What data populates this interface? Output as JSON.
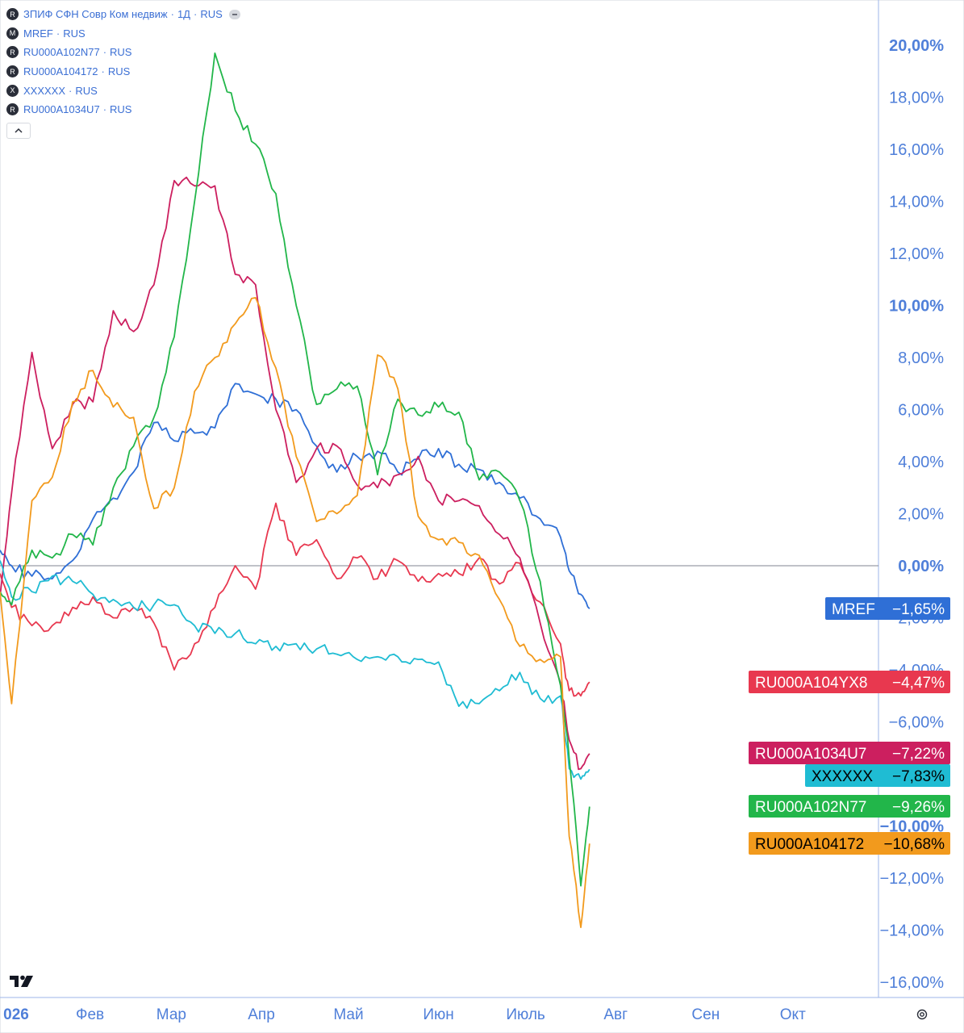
{
  "legend": {
    "main": {
      "badge": "R",
      "name": "ЗПИФ СФН Совр Ком недвиж",
      "interval": "1Д",
      "exchange": "RUS"
    },
    "items": [
      {
        "badge": "M",
        "name": "MREF",
        "exchange": "RUS"
      },
      {
        "badge": "R",
        "name": "RU000A102N77",
        "exchange": "RUS"
      },
      {
        "badge": "R",
        "name": "RU000A104172",
        "exchange": "RUS"
      },
      {
        "badge": "X",
        "name": "XXXXXX",
        "exchange": "RUS"
      },
      {
        "badge": "R",
        "name": "RU000A1034U7",
        "exchange": "RUS"
      }
    ],
    "separator": "·"
  },
  "chart_data": {
    "type": "line",
    "y_unit": "%",
    "ylim": [
      -16.5,
      21.5
    ],
    "y_ticks": [
      "20,00%",
      "18,00%",
      "16,00%",
      "14,00%",
      "12,00%",
      "10,00%",
      "8,00%",
      "6,00%",
      "4,00%",
      "2,00%",
      "0,00%",
      "−2,00%",
      "−4,00%",
      "−6,00%",
      "−10,00%",
      "−12,00%",
      "−14,00%",
      "−16,00%"
    ],
    "x_ticks": [
      "026",
      "Фев",
      "Мар",
      "Апр",
      "Май",
      "Июн",
      "Июль",
      "Авг",
      "Сен",
      "Окт"
    ],
    "zero_line": true,
    "series": [
      {
        "name": "MREF",
        "label": "MREF",
        "value_label": "−1,65%",
        "color": "#2f6fd6",
        "label_bg": "#2f6fd6",
        "label_fg": "#ffffff",
        "x": [
          "2026-01-01",
          "2026-01-05",
          "2026-01-12",
          "2026-01-19",
          "2026-01-26",
          "2026-02-02",
          "2026-02-09",
          "2026-02-16",
          "2026-02-23",
          "2026-03-02",
          "2026-03-09",
          "2026-03-16",
          "2026-03-23",
          "2026-03-30",
          "2026-04-06",
          "2026-04-13",
          "2026-04-20",
          "2026-04-27",
          "2026-05-04",
          "2026-05-11",
          "2026-05-18",
          "2026-05-25",
          "2026-06-01",
          "2026-06-08",
          "2026-06-15",
          "2026-06-22",
          "2026-06-29",
          "2026-07-06",
          "2026-07-13",
          "2026-07-16",
          "2026-07-20",
          "2026-07-23"
        ],
        "y": [
          0.6,
          0.0,
          -0.4,
          -0.5,
          0.2,
          1.8,
          2.6,
          3.6,
          5.5,
          4.8,
          5.1,
          5.3,
          7.0,
          6.6,
          6.4,
          6.0,
          4.6,
          3.6,
          4.2,
          4.4,
          3.6,
          4.1,
          4.5,
          3.9,
          3.7,
          3.2,
          2.6,
          1.8,
          1.1,
          -0.2,
          -1.1,
          -1.65
        ]
      },
      {
        "name": "RU000A104YX8",
        "label": "RU000A104YX8",
        "value_label": "−4,47%",
        "color": "#e8384f",
        "label_bg": "#e8384f",
        "label_fg": "#ffffff",
        "x": [
          "2026-01-01",
          "2026-01-05",
          "2026-01-12",
          "2026-01-19",
          "2026-01-26",
          "2026-02-02",
          "2026-02-09",
          "2026-02-16",
          "2026-02-23",
          "2026-03-02",
          "2026-03-09",
          "2026-03-16",
          "2026-03-23",
          "2026-03-30",
          "2026-04-06",
          "2026-04-13",
          "2026-04-20",
          "2026-04-27",
          "2026-05-04",
          "2026-05-11",
          "2026-05-18",
          "2026-05-25",
          "2026-06-01",
          "2026-06-08",
          "2026-06-15",
          "2026-06-22",
          "2026-06-29",
          "2026-07-06",
          "2026-07-13",
          "2026-07-16",
          "2026-07-20",
          "2026-07-23"
        ],
        "y": [
          -0.3,
          -1.6,
          -2.3,
          -2.3,
          -1.6,
          -1.2,
          -2.0,
          -1.6,
          -2.2,
          -4.0,
          -3.0,
          -1.6,
          0.0,
          -0.9,
          2.4,
          0.4,
          1.0,
          -0.5,
          0.3,
          -0.5,
          0.2,
          -0.6,
          -0.3,
          -0.3,
          0.3,
          -0.7,
          0.1,
          -1.4,
          -3.0,
          -4.8,
          -5.0,
          -4.47
        ]
      },
      {
        "name": "RU000A1034U7",
        "label": "RU000A1034U7",
        "value_label": "−7,22%",
        "color": "#cc1f5f",
        "label_bg": "#cc1f5f",
        "label_fg": "#ffffff",
        "x": [
          "2026-01-01",
          "2026-01-05",
          "2026-01-12",
          "2026-01-19",
          "2026-01-26",
          "2026-02-02",
          "2026-02-09",
          "2026-02-16",
          "2026-02-23",
          "2026-03-02",
          "2026-03-09",
          "2026-03-16",
          "2026-03-23",
          "2026-03-30",
          "2026-04-06",
          "2026-04-13",
          "2026-04-20",
          "2026-04-27",
          "2026-05-04",
          "2026-05-11",
          "2026-05-18",
          "2026-05-25",
          "2026-06-01",
          "2026-06-08",
          "2026-06-15",
          "2026-06-22",
          "2026-06-29",
          "2026-07-06",
          "2026-07-13",
          "2026-07-16",
          "2026-07-20",
          "2026-07-23"
        ],
        "y": [
          -1.2,
          2.8,
          8.2,
          4.5,
          6.2,
          6.3,
          9.8,
          9.0,
          10.8,
          14.8,
          14.6,
          14.6,
          11.2,
          10.8,
          6.0,
          3.2,
          4.5,
          4.6,
          3.1,
          3.0,
          3.5,
          4.2,
          2.5,
          2.5,
          2.3,
          1.2,
          0.3,
          -2.2,
          -4.5,
          -6.7,
          -7.8,
          -7.22
        ]
      },
      {
        "name": "XXXXXX",
        "label": "XXXXXX",
        "value_label": "−7,83%",
        "color": "#1fbcd3",
        "label_bg": "#1fbcd3",
        "label_fg": "#000000",
        "x": [
          "2026-01-01",
          "2026-01-05",
          "2026-01-12",
          "2026-01-19",
          "2026-01-26",
          "2026-02-02",
          "2026-02-09",
          "2026-02-16",
          "2026-02-23",
          "2026-03-02",
          "2026-03-09",
          "2026-03-16",
          "2026-03-23",
          "2026-03-30",
          "2026-04-06",
          "2026-04-13",
          "2026-04-20",
          "2026-04-27",
          "2026-05-04",
          "2026-05-11",
          "2026-05-18",
          "2026-05-25",
          "2026-06-01",
          "2026-06-08",
          "2026-06-15",
          "2026-06-22",
          "2026-06-29",
          "2026-07-06",
          "2026-07-13",
          "2026-07-16",
          "2026-07-20",
          "2026-07-23"
        ],
        "y": [
          0.2,
          -1.2,
          -1.0,
          -0.4,
          -0.6,
          -1.1,
          -1.3,
          -1.6,
          -1.5,
          -1.5,
          -2.3,
          -2.6,
          -2.6,
          -3.0,
          -3.1,
          -3.0,
          -3.2,
          -3.4,
          -3.6,
          -3.5,
          -3.5,
          -3.6,
          -3.7,
          -5.4,
          -5.3,
          -4.8,
          -4.1,
          -5.1,
          -5.0,
          -7.8,
          -8.2,
          -7.83
        ]
      },
      {
        "name": "RU000A102N77",
        "label": "RU000A102N77",
        "value_label": "−9,26%",
        "color": "#22b64a",
        "label_bg": "#22b64a",
        "label_fg": "#ffffff",
        "x": [
          "2026-01-01",
          "2026-01-05",
          "2026-01-12",
          "2026-01-19",
          "2026-01-26",
          "2026-02-02",
          "2026-02-09",
          "2026-02-16",
          "2026-02-23",
          "2026-03-02",
          "2026-03-09",
          "2026-03-16",
          "2026-03-23",
          "2026-03-30",
          "2026-04-06",
          "2026-04-13",
          "2026-04-20",
          "2026-04-27",
          "2026-05-04",
          "2026-05-11",
          "2026-05-18",
          "2026-05-25",
          "2026-06-01",
          "2026-06-08",
          "2026-06-15",
          "2026-06-22",
          "2026-06-29",
          "2026-07-06",
          "2026-07-13",
          "2026-07-16",
          "2026-07-20",
          "2026-07-23"
        ],
        "y": [
          -1.0,
          -1.5,
          0.6,
          0.3,
          1.2,
          0.8,
          3.0,
          4.6,
          5.7,
          8.8,
          14.0,
          19.7,
          17.5,
          16.2,
          14.3,
          10.0,
          6.2,
          6.8,
          6.9,
          3.5,
          6.4,
          5.8,
          6.1,
          5.9,
          3.3,
          3.6,
          2.5,
          -0.6,
          -4.6,
          -7.4,
          -12.3,
          -9.26
        ]
      },
      {
        "name": "RU000A104172",
        "label": "RU000A104172",
        "value_label": "−10,68%",
        "color": "#f29a1d",
        "label_bg": "#f29a1d",
        "label_fg": "#000000",
        "x": [
          "2026-01-01",
          "2026-01-05",
          "2026-01-12",
          "2026-01-19",
          "2026-01-26",
          "2026-02-02",
          "2026-02-09",
          "2026-02-16",
          "2026-02-23",
          "2026-03-02",
          "2026-03-09",
          "2026-03-16",
          "2026-03-23",
          "2026-03-30",
          "2026-04-06",
          "2026-04-13",
          "2026-04-20",
          "2026-04-27",
          "2026-05-04",
          "2026-05-11",
          "2026-05-18",
          "2026-05-25",
          "2026-06-01",
          "2026-06-08",
          "2026-06-15",
          "2026-06-22",
          "2026-06-29",
          "2026-07-06",
          "2026-07-13",
          "2026-07-16",
          "2026-07-20",
          "2026-07-23"
        ],
        "y": [
          -1.0,
          -5.3,
          2.5,
          3.4,
          6.3,
          7.5,
          6.1,
          5.7,
          2.2,
          3.0,
          6.7,
          8.0,
          9.3,
          10.3,
          7.6,
          4.2,
          1.7,
          2.0,
          2.7,
          8.1,
          6.8,
          1.9,
          1.0,
          0.9,
          0.4,
          -1.3,
          -3.1,
          -3.6,
          -3.5,
          -10.4,
          -13.9,
          -10.68
        ]
      }
    ]
  },
  "icons": {
    "logo": "tradingview-logo",
    "settings": "settings-gear-icon"
  }
}
